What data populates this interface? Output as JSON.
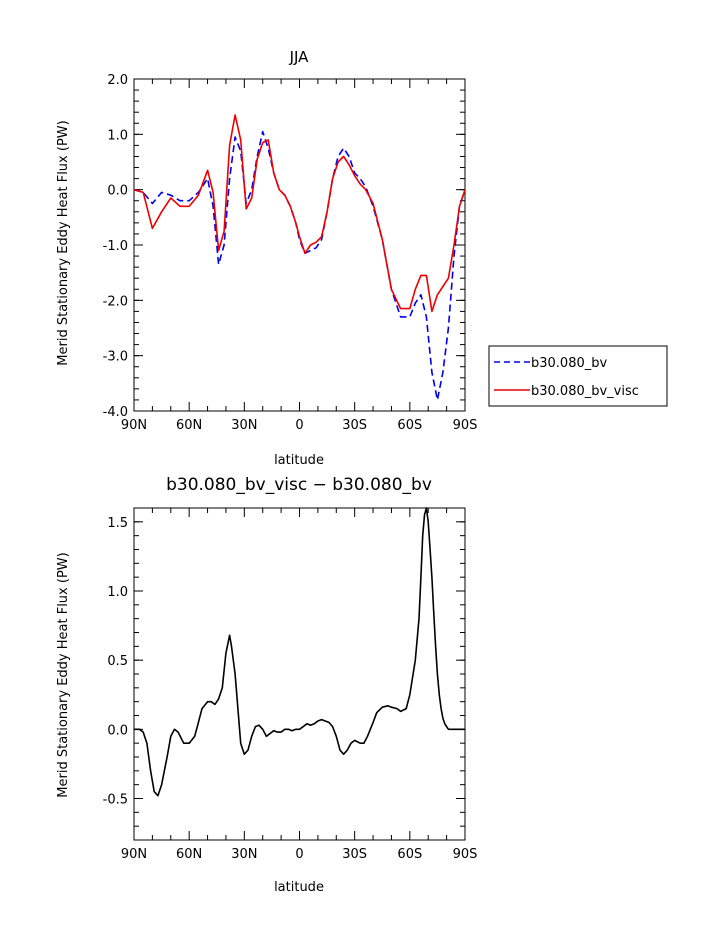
{
  "chart_data": [
    {
      "type": "line",
      "title": "JJA",
      "xlabel": "latitude",
      "ylabel": "Merid Stationary Eddy Heat Flux (PW)",
      "xlim": [
        -90,
        90
      ],
      "ylim": [
        -4.0,
        2.0
      ],
      "x_ticks": [
        "90N",
        "60N",
        "30N",
        "0",
        "30S",
        "60S",
        "90S"
      ],
      "y_ticks": [
        "2.0",
        "1.0",
        "0.0",
        "-1.0",
        "-2.0",
        "-3.0",
        "-4.0"
      ],
      "legend_position": "right",
      "series": [
        {
          "name": "b30.080_bv",
          "color": "#0000ee",
          "dash": "dashed",
          "x": [
            -90,
            -85,
            -80,
            -75,
            -70,
            -65,
            -60,
            -55,
            -50,
            -47,
            -44,
            -41,
            -38,
            -35,
            -32,
            -29,
            -26,
            -23,
            -20,
            -17,
            -14,
            -11,
            -8,
            -5,
            -2,
            0,
            3,
            6,
            9,
            12,
            15,
            18,
            21,
            24,
            27,
            30,
            33,
            36,
            40,
            45,
            50,
            55,
            60,
            63,
            66,
            69,
            72,
            75,
            78,
            81,
            84,
            87,
            90
          ],
          "y": [
            0,
            -0.05,
            -0.25,
            -0.05,
            -0.1,
            -0.2,
            -0.2,
            -0.05,
            0.2,
            -0.3,
            -1.35,
            -1.0,
            0.2,
            0.95,
            0.7,
            -0.25,
            0.0,
            0.6,
            1.05,
            0.75,
            0.3,
            0.0,
            -0.1,
            -0.3,
            -0.6,
            -0.9,
            -1.15,
            -1.1,
            -1.05,
            -0.9,
            -0.4,
            0.2,
            0.6,
            0.75,
            0.6,
            0.3,
            0.2,
            0.05,
            -0.3,
            -0.9,
            -1.8,
            -2.3,
            -2.3,
            -2.05,
            -1.9,
            -2.3,
            -3.3,
            -3.8,
            -3.3,
            -2.5,
            -1.2,
            -0.3,
            0
          ]
        },
        {
          "name": "b30.080_bv_visc",
          "color": "#ee0000",
          "dash": "solid",
          "x": [
            -90,
            -85,
            -80,
            -75,
            -70,
            -65,
            -60,
            -55,
            -50,
            -47,
            -44,
            -41,
            -38,
            -35,
            -32,
            -29,
            -26,
            -23,
            -20,
            -17,
            -14,
            -11,
            -8,
            -5,
            -2,
            0,
            3,
            6,
            9,
            12,
            15,
            18,
            21,
            24,
            27,
            30,
            33,
            36,
            40,
            45,
            50,
            55,
            60,
            63,
            66,
            69,
            72,
            75,
            78,
            81,
            84,
            87,
            90
          ],
          "y": [
            0,
            -0.05,
            -0.7,
            -0.4,
            -0.15,
            -0.3,
            -0.3,
            -0.1,
            0.35,
            -0.05,
            -1.1,
            -0.75,
            0.8,
            1.35,
            0.9,
            -0.35,
            -0.15,
            0.55,
            0.85,
            0.9,
            0.3,
            0.0,
            -0.1,
            -0.3,
            -0.6,
            -0.85,
            -1.15,
            -1.0,
            -0.95,
            -0.85,
            -0.4,
            0.2,
            0.5,
            0.6,
            0.45,
            0.25,
            0.1,
            0.0,
            -0.25,
            -0.9,
            -1.8,
            -2.15,
            -2.15,
            -1.8,
            -1.55,
            -1.55,
            -2.2,
            -1.9,
            -1.75,
            -1.6,
            -1.0,
            -0.3,
            0
          ]
        }
      ]
    },
    {
      "type": "line",
      "title": "b30.080_bv_visc − b30.080_bv",
      "xlabel": "latitude",
      "ylabel": "Merid Stationary Eddy Heat Flux (PW)",
      "xlim": [
        -90,
        90
      ],
      "ylim": [
        -0.8,
        1.6
      ],
      "x_ticks": [
        "90N",
        "60N",
        "30N",
        "0",
        "30S",
        "60S",
        "90S"
      ],
      "y_ticks": [
        "1.5",
        "1.0",
        "0.5",
        "0.0",
        "-0.5"
      ],
      "series": [
        {
          "color": "#000000",
          "dash": "solid",
          "x": [
            -90,
            -87,
            -85,
            -83,
            -81,
            -79,
            -77,
            -75,
            -72,
            -70,
            -68,
            -66,
            -63,
            -60,
            -57,
            -55,
            -53,
            -50,
            -48,
            -46,
            -44,
            -42,
            -40,
            -38,
            -37,
            -35,
            -32,
            -30,
            -28,
            -26,
            -24,
            -22,
            -20,
            -18,
            -16,
            -14,
            -12,
            -10,
            -8,
            -6,
            -4,
            -2,
            0,
            2,
            4,
            6,
            8,
            10,
            12,
            14,
            16,
            18,
            20,
            22,
            24,
            26,
            28,
            30,
            33,
            35,
            37,
            40,
            42,
            45,
            48,
            50,
            53,
            55,
            58,
            60,
            63,
            65,
            66,
            67,
            68,
            69,
            70,
            71,
            72,
            73,
            74,
            75,
            76,
            77,
            78,
            79,
            80,
            81,
            82,
            83,
            84,
            85,
            87,
            90
          ],
          "y": [
            0,
            0,
            -0.02,
            -0.1,
            -0.3,
            -0.45,
            -0.48,
            -0.4,
            -0.2,
            -0.05,
            0.0,
            -0.02,
            -0.1,
            -0.1,
            -0.05,
            0.05,
            0.15,
            0.2,
            0.2,
            0.18,
            0.22,
            0.3,
            0.55,
            0.68,
            0.6,
            0.4,
            -0.1,
            -0.18,
            -0.15,
            -0.05,
            0.02,
            0.03,
            0.0,
            -0.05,
            -0.03,
            -0.01,
            -0.02,
            -0.02,
            0.0,
            0.0,
            -0.01,
            0.0,
            0.0,
            0.02,
            0.04,
            0.03,
            0.04,
            0.06,
            0.07,
            0.06,
            0.05,
            0.02,
            -0.05,
            -0.15,
            -0.18,
            -0.15,
            -0.1,
            -0.08,
            -0.1,
            -0.1,
            -0.05,
            0.05,
            0.12,
            0.16,
            0.17,
            0.16,
            0.15,
            0.13,
            0.15,
            0.25,
            0.5,
            0.8,
            1.1,
            1.4,
            1.55,
            1.6,
            1.5,
            1.3,
            1.1,
            0.85,
            0.6,
            0.4,
            0.25,
            0.15,
            0.08,
            0.04,
            0.02,
            0.0,
            0.0,
            0.0,
            0.0,
            0.0,
            0.0,
            0.0
          ]
        }
      ]
    }
  ]
}
